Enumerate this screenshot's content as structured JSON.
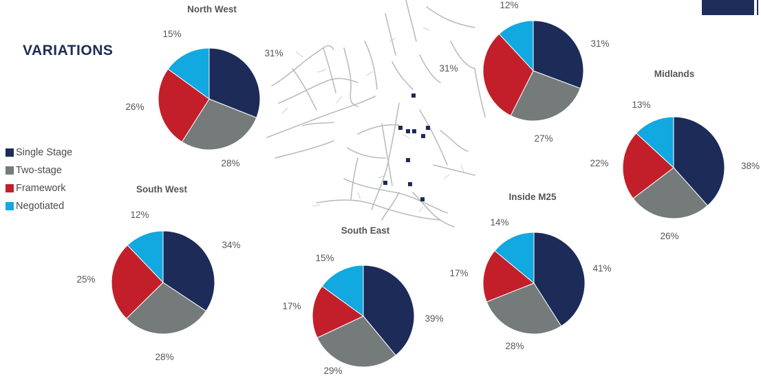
{
  "page": {
    "title": "VARIATIONS"
  },
  "colors": {
    "single_stage": "#1c2b58",
    "two_stage": "#757a7b",
    "framework": "#c21f2a",
    "negotiated": "#12a8e0"
  },
  "legend": [
    {
      "label": "Single Stage",
      "color": "#1c2b58"
    },
    {
      "label": "Two-stage",
      "color": "#757a7b"
    },
    {
      "label": "Framework",
      "color": "#c21f2a"
    },
    {
      "label": "Negotiated",
      "color": "#12a8e0"
    }
  ],
  "chart_data": [
    {
      "type": "pie",
      "title": "North West",
      "categories": [
        "Single Stage",
        "Two-stage",
        "Framework",
        "Negotiated"
      ],
      "values": [
        31,
        28,
        26,
        15
      ],
      "labels": [
        "31%",
        "28%",
        "26%",
        "15%"
      ]
    },
    {
      "type": "pie",
      "title": "",
      "categories": [
        "Single Stage",
        "Two-stage",
        "Framework",
        "Negotiated"
      ],
      "values": [
        31,
        27,
        31,
        12
      ],
      "labels": [
        "31%",
        "27%",
        "31%",
        "12%"
      ]
    },
    {
      "type": "pie",
      "title": "Midlands",
      "categories": [
        "Single Stage",
        "Two-stage",
        "Framework",
        "Negotiated"
      ],
      "values": [
        38,
        26,
        22,
        13
      ],
      "labels": [
        "38%",
        "26%",
        "22%",
        "13%"
      ]
    },
    {
      "type": "pie",
      "title": "South West",
      "categories": [
        "Single Stage",
        "Two-stage",
        "Framework",
        "Negotiated"
      ],
      "values": [
        34,
        28,
        25,
        12
      ],
      "labels": [
        "34%",
        "28%",
        "25%",
        "12%"
      ]
    },
    {
      "type": "pie",
      "title": "South East",
      "categories": [
        "Single Stage",
        "Two-stage",
        "Framework",
        "Negotiated"
      ],
      "values": [
        39,
        29,
        17,
        15
      ],
      "labels": [
        "39%",
        "29%",
        "17%",
        "15%"
      ]
    },
    {
      "type": "pie",
      "title": "Inside M25",
      "categories": [
        "Single Stage",
        "Two-stage",
        "Framework",
        "Negotiated"
      ],
      "values": [
        41,
        28,
        17,
        14
      ],
      "labels": [
        "41%",
        "28%",
        "17%",
        "14%"
      ]
    }
  ]
}
